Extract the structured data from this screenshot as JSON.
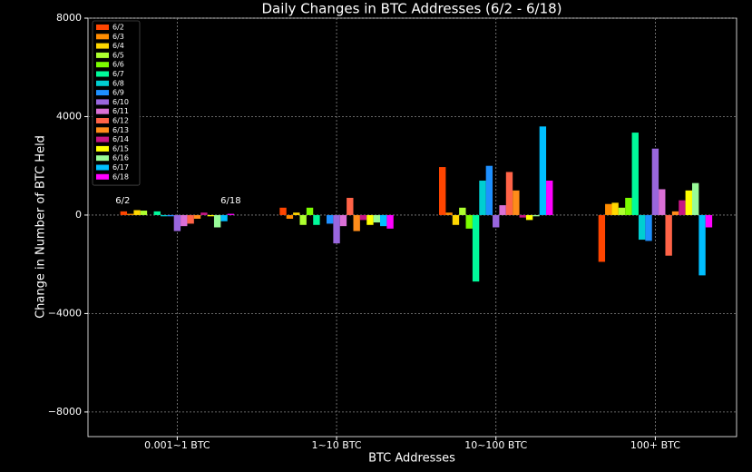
{
  "chart_data": {
    "type": "bar",
    "title": "Daily Changes in BTC Addresses (6/2 - 6/18)",
    "x_label": "BTC Addresses",
    "y_label": "Change in Number of BTC Held",
    "categories": [
      "0.001~1 BTC",
      "1~10 BTC",
      "10~100 BTC",
      "100+ BTC"
    ],
    "annotations": [
      "6/2",
      "6/18"
    ],
    "ylim": [
      -9000,
      8000
    ],
    "yticks": [
      {
        "value": -8000,
        "label": "−8000"
      },
      {
        "value": -4000,
        "label": "−4000"
      },
      0,
      4000,
      8000
    ],
    "grid": true,
    "legend": "upper left",
    "series": [
      {
        "name": "6/2",
        "color": "#ff4500",
        "values": [
          150,
          300,
          1950,
          -1900
        ]
      },
      {
        "name": "6/3",
        "color": "#ff8c00",
        "values": [
          50,
          -150,
          100,
          450
        ]
      },
      {
        "name": "6/4",
        "color": "#ffd700",
        "values": [
          200,
          100,
          -400,
          500
        ]
      },
      {
        "name": "6/5",
        "color": "#adff2f",
        "values": [
          180,
          -400,
          300,
          300
        ]
      },
      {
        "name": "6/6",
        "color": "#7cfc00",
        "values": [
          0,
          300,
          -550,
          700
        ]
      },
      {
        "name": "6/7",
        "color": "#00fa9a",
        "values": [
          150,
          -400,
          -2700,
          3350
        ]
      },
      {
        "name": "6/8",
        "color": "#00ced1",
        "values": [
          -50,
          0,
          1400,
          -1000
        ]
      },
      {
        "name": "6/9",
        "color": "#1e90ff",
        "values": [
          -50,
          -350,
          2000,
          -1050
        ]
      },
      {
        "name": "6/10",
        "color": "#9966dd",
        "values": [
          -650,
          -1150,
          -500,
          2700
        ]
      },
      {
        "name": "6/11",
        "color": "#da70d6",
        "values": [
          -450,
          -450,
          400,
          1050
        ]
      },
      {
        "name": "6/12",
        "color": "#ff6347",
        "values": [
          -350,
          700,
          1750,
          -1650
        ]
      },
      {
        "name": "6/13",
        "color": "#ff8c1a",
        "values": [
          -150,
          -650,
          1000,
          150
        ]
      },
      {
        "name": "6/14",
        "color": "#c71585",
        "values": [
          100,
          -200,
          -100,
          600
        ]
      },
      {
        "name": "6/15",
        "color": "#ffff00",
        "values": [
          -50,
          -400,
          -200,
          1000
        ]
      },
      {
        "name": "6/16",
        "color": "#98fb98",
        "values": [
          -500,
          -300,
          -50,
          1300
        ]
      },
      {
        "name": "6/17",
        "color": "#00bfff",
        "values": [
          -250,
          -450,
          3600,
          -2450
        ]
      },
      {
        "name": "6/18",
        "color": "#ff00ff",
        "values": [
          50,
          -550,
          1400,
          -500
        ]
      }
    ]
  }
}
